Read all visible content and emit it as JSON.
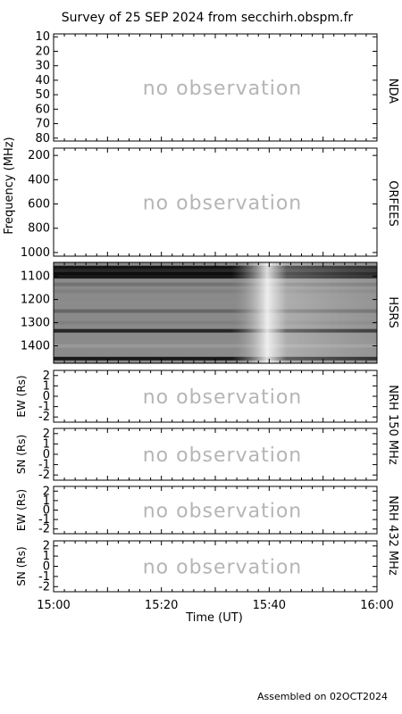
{
  "title": "Survey of 25 SEP 2024 from secchirh.obspm.fr",
  "footer": "Assembled on 02OCT2024",
  "chart_data": [
    {
      "type": "heatmap",
      "instrument": "NDA",
      "ylabel": "",
      "ylim": [
        8,
        82
      ],
      "y_ticks": [
        10,
        20,
        30,
        40,
        50,
        60,
        70,
        80
      ],
      "status": "no observation"
    },
    {
      "type": "heatmap",
      "instrument": "ORFEES",
      "ylabel": "Frequency (MHz)",
      "ylim": [
        140,
        1030
      ],
      "y_ticks": [
        200,
        400,
        600,
        800,
        1000
      ],
      "status": "no observation"
    },
    {
      "type": "heatmap",
      "instrument": "HSRS",
      "ylabel": "",
      "ylim": [
        1040,
        1475
      ],
      "y_ticks": [
        1100,
        1200,
        1300,
        1400
      ],
      "status": ""
    },
    {
      "type": "heatmap",
      "instrument": "NRH 150 MHz",
      "ylabel": "EW (Rs)",
      "ylim": [
        -2.5,
        2.5
      ],
      "y_ticks": [
        2,
        1,
        0,
        -1,
        -2
      ],
      "status": "no observation"
    },
    {
      "type": "heatmap",
      "instrument": "NRH 150 MHz",
      "ylabel": "SN (Rs)",
      "ylim": [
        -2.5,
        2.5
      ],
      "y_ticks": [
        2,
        1,
        0,
        -1,
        -2
      ],
      "status": "no observation"
    },
    {
      "type": "heatmap",
      "instrument": "NRH 432 MHz",
      "ylabel": "EW (Rs)",
      "ylim": [
        -2.5,
        2.5
      ],
      "y_ticks": [
        2,
        1,
        0,
        -1,
        -2
      ],
      "status": "no observation"
    },
    {
      "type": "heatmap",
      "instrument": "NRH 432 MHz",
      "ylabel": "SN (Rs)",
      "ylim": [
        -2.5,
        2.5
      ],
      "y_ticks": [
        2,
        1,
        0,
        -1,
        -2
      ],
      "status": "no observation"
    }
  ],
  "x_axis": {
    "label": "Time (UT)",
    "ticks": [
      "15:00",
      "15:20",
      "15:40",
      "16:00"
    ],
    "xlim": [
      "15:00",
      "16:00"
    ]
  },
  "right_labels": {
    "nda": "NDA",
    "orfees": "ORFEES",
    "hsrs": "HSRS",
    "nrh150": "NRH 150 MHz",
    "nrh432": "NRH 432 MHz"
  },
  "hsrs_bands": [
    {
      "freq": 1062,
      "intensity": 0.92
    },
    {
      "freq": 1075,
      "intensity": 0.85
    },
    {
      "freq": 1090,
      "intensity": 0.95
    },
    {
      "freq": 1102,
      "intensity": 0.9
    },
    {
      "freq": 1135,
      "intensity": 0.55
    },
    {
      "freq": 1165,
      "intensity": 0.5
    },
    {
      "freq": 1215,
      "intensity": 0.45
    },
    {
      "freq": 1250,
      "intensity": 0.6
    },
    {
      "freq": 1300,
      "intensity": 0.5
    },
    {
      "freq": 1335,
      "intensity": 0.85
    },
    {
      "freq": 1400,
      "intensity": 0.4
    },
    {
      "freq": 1455,
      "intensity": 0.9
    }
  ]
}
